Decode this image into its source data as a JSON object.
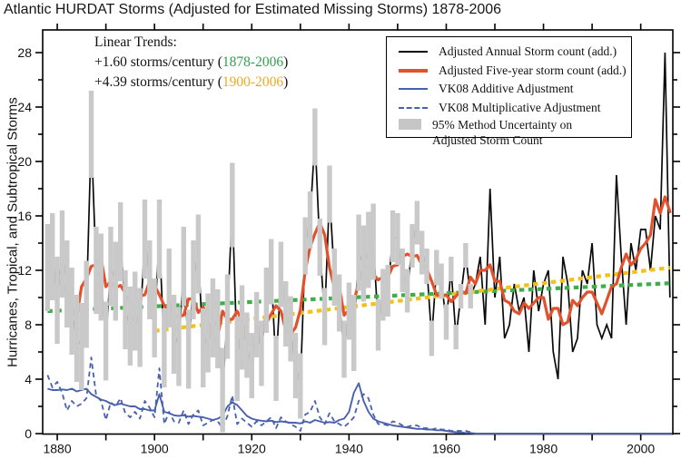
{
  "title": "Atlantic HURDAT Storms (Adjusted for Estimated Missing Storms) 1878-2006",
  "y_axis": {
    "label": "Hurricanes, Tropical, and Subtropical Storms",
    "min": 0,
    "max": 29.6,
    "major_ticks": [
      0,
      4,
      8,
      12,
      16,
      20,
      24,
      28
    ],
    "minor_step": 2
  },
  "x_axis": {
    "min": 1877,
    "max": 2006.6,
    "labeled_ticks": [
      1880,
      1900,
      1920,
      1940,
      1960,
      1980,
      2000
    ],
    "minor_step": 10
  },
  "annotation": {
    "heading": "Linear Trends:",
    "trend1_prefix": "+1.60 storms/century (",
    "trend1_range": "1878-2006",
    "trend1_suffix": ")",
    "trend2_prefix": "+4.39 storms/century (",
    "trend2_range": "1900-2006",
    "trend2_suffix": ")",
    "trend1_color": "#2fa04c",
    "trend2_color": "#f0a81f"
  },
  "legend": {
    "items": [
      {
        "label": "Adjusted Annual Storm count (add.)",
        "swatch": "black-line"
      },
      {
        "label": "Adjusted Five-year storm count (add.)",
        "swatch": "red-thick-line"
      },
      {
        "label": "VK08 Additive Adjustment",
        "swatch": "blue-line"
      },
      {
        "label": "VK08 Multiplicative Adjustment",
        "swatch": "blue-dashed-line"
      },
      {
        "label": "95% Method Uncertainty on",
        "label2": "Adjusted Storm Count",
        "swatch": "gray-box"
      }
    ]
  },
  "chart_data": {
    "type": "line",
    "title": "Atlantic HURDAT Storms (Adjusted for Estimated Missing Storms) 1878-2006",
    "xlabel": "",
    "ylabel": "Hurricanes, Tropical, and Subtropical Storms",
    "x_range": [
      1877,
      2006.6
    ],
    "y_range": [
      0,
      29.6
    ],
    "grid": false,
    "legend_position": "top-right-inside",
    "start_year": 1878,
    "end_year": 2006,
    "series": [
      {
        "name": "Adjusted Annual Storm count (add.)",
        "color": "#0a0a0a",
        "style": "solid",
        "width": 1.7,
        "values": [
          12.2,
          13,
          9.8,
          13.2,
          11,
          9,
          7,
          6.4,
          9.5,
          22,
          12,
          11.5,
          6.8,
          12.3,
          11.2,
          14.1,
          9.1,
          7.9,
          9,
          7.8,
          14.3,
          11.3,
          8.5,
          14.3,
          6.3,
          10.7,
          7.3,
          6.4,
          12.3,
          6.2,
          11.3,
          13.2,
          6.3,
          7.4,
          8.5,
          7.7,
          3.2,
          8.6,
          16.8,
          5.5,
          7.8,
          6.5,
          5,
          8,
          5.9,
          9.8,
          11.9,
          4.8,
          11.7,
          8.8,
          7.7,
          5,
          3.5,
          13.8,
          15.7,
          21.8,
          13.7,
          8.6,
          17.6,
          11.5,
          9.6,
          6.2,
          9,
          7.4,
          13.3,
          12.5,
          13.5,
          14.1,
          8,
          10.2,
          10.5,
          14.5,
          14.3,
          12,
          10.5,
          13.8,
          15.5,
          13.3,
          12.3,
          7,
          12.2,
          11.2,
          8.2,
          12.1,
          7.1,
          10.1,
          13.1,
          10.1,
          11,
          13,
          8,
          18,
          10,
          13,
          7,
          8,
          11,
          9,
          10,
          6,
          12,
          9,
          11,
          12,
          6,
          4,
          13,
          11,
          6,
          7,
          12,
          11,
          14,
          8,
          7,
          8,
          7,
          19,
          13,
          8,
          14,
          12,
          15,
          15,
          12,
          16,
          15,
          28,
          10
        ]
      },
      {
        "name": "Adjusted Five-year storm count (add.)",
        "color": "#e0512c",
        "style": "solid",
        "width": 3.2,
        "values": [
          11.7,
          12.1,
          11.8,
          11.2,
          10,
          9.3,
          8.6,
          10.8,
          11.4,
          12.3,
          12.4,
          12.9,
          10.8,
          11.2,
          10.7,
          10.9,
          10.3,
          9.6,
          9.6,
          10.1,
          10.2,
          11.2,
          10.9,
          10.2,
          9.4,
          9,
          8.6,
          8.6,
          8.7,
          9.9,
          9.9,
          8.9,
          9.3,
          8.6,
          6.6,
          7.1,
          9,
          8.4,
          8.4,
          9,
          8.3,
          6.6,
          6.6,
          7,
          8.1,
          8.1,
          8.8,
          9.4,
          9,
          7.6,
          7.3,
          7.8,
          9.1,
          12,
          13.7,
          14.7,
          15.5,
          14.6,
          12.2,
          10.7,
          10.8,
          8.7,
          9.1,
          9.7,
          11.1,
          12.2,
          12.3,
          11.7,
          11.3,
          11.5,
          11.5,
          12.3,
          12.4,
          13,
          13.2,
          13,
          13.1,
          12.4,
          12.1,
          11.2,
          10.2,
          10.1,
          10.2,
          9.7,
          10.1,
          10.5,
          10.3,
          11.5,
          11,
          12,
          12,
          12.4,
          11.2,
          11.2,
          9.8,
          9.6,
          9,
          8.8,
          9.6,
          9.2,
          9.6,
          10,
          10,
          8.4,
          9.2,
          9.2,
          8,
          8.2,
          9.8,
          9.4,
          10,
          10.4,
          10.4,
          9.6,
          8.8,
          9.8,
          10.8,
          11,
          12.2,
          13.2,
          12.4,
          12.8,
          13.6,
          14,
          14.6,
          17.2,
          16.2,
          17.4,
          16.3
        ]
      },
      {
        "name": "VK08 Additive Adjustment",
        "color": "#4961ac",
        "style": "solid",
        "width": 1.9,
        "values": [
          3.3,
          3.2,
          3.2,
          3.25,
          3.2,
          3.3,
          3.1,
          3.2,
          3.3,
          2.9,
          2.7,
          2.5,
          2.4,
          2.2,
          2.1,
          2.2,
          2.1,
          2,
          2,
          1.8,
          1.8,
          1.7,
          1.7,
          2.9,
          1.6,
          1.5,
          1.35,
          1.3,
          1.35,
          1.25,
          1.3,
          1.25,
          1.2,
          1.1,
          1,
          1.1,
          1.3,
          2,
          2.3,
          2.1,
          1.7,
          1.3,
          1.1,
          1,
          0.95,
          0.9,
          0.95,
          0.85,
          0.9,
          0.85,
          0.8,
          0.8,
          0.75,
          0.9,
          0.8,
          1,
          0.9,
          0.8,
          0.85,
          0.8,
          1,
          1.1,
          1.6,
          3,
          3.7,
          2.4,
          1.6,
          1.1,
          0.9,
          0.8,
          0.7,
          0.6,
          0.55,
          0.5,
          0.45,
          0.4,
          0.35,
          0.35,
          0.3,
          0.3,
          0.25,
          0.25,
          0.2,
          0.15,
          0.1,
          0.1,
          0.05,
          0.05,
          0,
          0,
          0,
          0,
          0,
          0,
          0,
          0,
          0,
          0,
          0,
          0,
          0,
          0,
          0,
          0,
          0,
          0,
          0,
          0,
          0,
          0,
          0,
          0,
          0,
          0,
          0,
          0,
          0,
          0,
          0,
          0,
          0,
          0,
          0,
          0,
          0,
          0,
          0,
          0,
          0,
          0
        ]
      },
      {
        "name": "VK08 Multiplicative Adjustment",
        "color": "#4961ac",
        "style": "dashed",
        "width": 1.8,
        "values": [
          4.3,
          3.4,
          3.8,
          3,
          1.7,
          2.4,
          2,
          2.2,
          2.6,
          5.6,
          2.8,
          2.4,
          1,
          2.3,
          2,
          2.6,
          1.5,
          1.2,
          1.6,
          1.1,
          2.4,
          1.9,
          1.2,
          4.8,
          0.7,
          1.6,
          0.9,
          0.8,
          1.7,
          0.7,
          1.4,
          1.7,
          0.6,
          0.8,
          1,
          0.9,
          0.4,
          1.3,
          2.8,
          0.7,
          1.1,
          0.8,
          0.5,
          0.9,
          0.6,
          0.9,
          1.2,
          0.4,
          1.2,
          0.9,
          0.7,
          0.5,
          0.2,
          1.4,
          1.6,
          2.4,
          1.2,
          0.7,
          1.5,
          0.9,
          0.7,
          0.5,
          0.8,
          1.2,
          2.4,
          2.9,
          2.6,
          1.4,
          0.7,
          0.7,
          0.6,
          0.9,
          0.8,
          0.6,
          0.5,
          0.6,
          0.6,
          0.4,
          0.4,
          0.3,
          0.4,
          0.3,
          0.3,
          0.2,
          0.2,
          0.2,
          0.2,
          0.1,
          0,
          0,
          0,
          0,
          0,
          0,
          0,
          0,
          0,
          0,
          0,
          0,
          0,
          0,
          0,
          0,
          0,
          0,
          0,
          0,
          0,
          0,
          0,
          0,
          0,
          0,
          0,
          0,
          0,
          0,
          0,
          0,
          0,
          0,
          0,
          0,
          0,
          0,
          0,
          0,
          0,
          0
        ]
      }
    ],
    "uncertainty_band": {
      "label": "95% Method Uncertainty on Adjusted Storm Count",
      "color": "#c9c9c9",
      "start_year": 1878,
      "end_year": 1965,
      "halfwidths": [
        3.2,
        3.2,
        3.2,
        3.2,
        3.2,
        3.2,
        3.2,
        3.2,
        3.2,
        3.2,
        3.2,
        3.2,
        2.9,
        2.9,
        2.9,
        2.9,
        2.9,
        2.9,
        2.9,
        2.9,
        2.9,
        2.9,
        2.9,
        2.9,
        2.9,
        2.9,
        2.9,
        2.9,
        2.9,
        2.9,
        2.9,
        2.9,
        2.9,
        2.9,
        2.9,
        2.9,
        3.1,
        3.1,
        3.1,
        3.1,
        3.1,
        2.4,
        2.4,
        2.4,
        2.4,
        2.4,
        2.4,
        2.4,
        2.4,
        2.4,
        2.4,
        2.4,
        2.4,
        2.1,
        2.1,
        2.1,
        2.1,
        2.1,
        2.1,
        2.1,
        2.1,
        2.1,
        2.1,
        2.8,
        2.8,
        2.8,
        2.8,
        2.8,
        1.9,
        1.9,
        1.9,
        1.9,
        1.9,
        1.6,
        1.6,
        1.6,
        1.6,
        1.6,
        1.3,
        1.3,
        1.3,
        1.3,
        1.3,
        0.9,
        0.9,
        0.9,
        0.9,
        0.9
      ]
    },
    "trend_lines": [
      {
        "name": "Linear trend 1878-2006",
        "slope_label": "+1.60 storms/century",
        "range": "1878-2006",
        "color": "#3fae4a",
        "x1": 1878,
        "y1": 9.0,
        "x2": 2006,
        "y2": 11.05
      },
      {
        "name": "Linear trend 1900-2006",
        "slope_label": "+4.39 storms/century",
        "range": "1900-2006",
        "color": "#f2c11c",
        "x1": 1900,
        "y1": 7.55,
        "x2": 2006,
        "y2": 12.2
      }
    ]
  }
}
